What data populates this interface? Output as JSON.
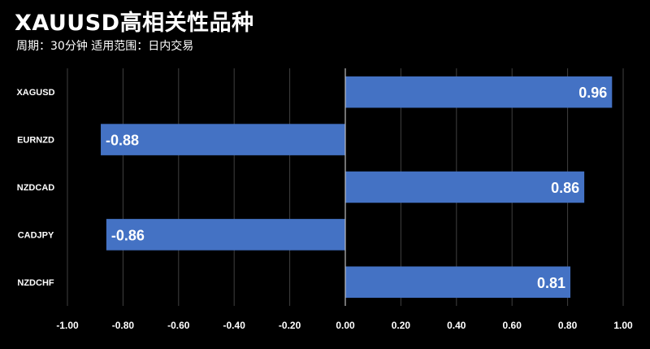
{
  "title": "XAUUSD高相关性品种",
  "subtitle": "周期：30分钟  适用范围：日内交易",
  "colors": {
    "background": "#000000",
    "bar": "#4472C4",
    "grid": "#404040",
    "text": "#FFFFFF"
  },
  "chart_data": {
    "type": "bar",
    "orientation": "horizontal",
    "categories": [
      "XAGUSD",
      "EURNZD",
      "NZDCAD",
      "CADJPY",
      "NZDCHF"
    ],
    "values": [
      0.96,
      -0.88,
      0.86,
      -0.86,
      0.81
    ],
    "value_labels": [
      "0.96",
      "-0.88",
      "0.86",
      "-0.86",
      "0.81"
    ],
    "xlim": [
      -1.0,
      1.0
    ],
    "xticks": [
      -1.0,
      -0.8,
      -0.6,
      -0.4,
      -0.2,
      0.0,
      0.2,
      0.4,
      0.6,
      0.8,
      1.0
    ],
    "xtick_labels": [
      "-1.00",
      "-0.80",
      "-0.60",
      "-0.40",
      "-0.20",
      "0.00",
      "0.20",
      "0.40",
      "0.60",
      "0.80",
      "1.00"
    ],
    "grid": true,
    "legend": false
  }
}
